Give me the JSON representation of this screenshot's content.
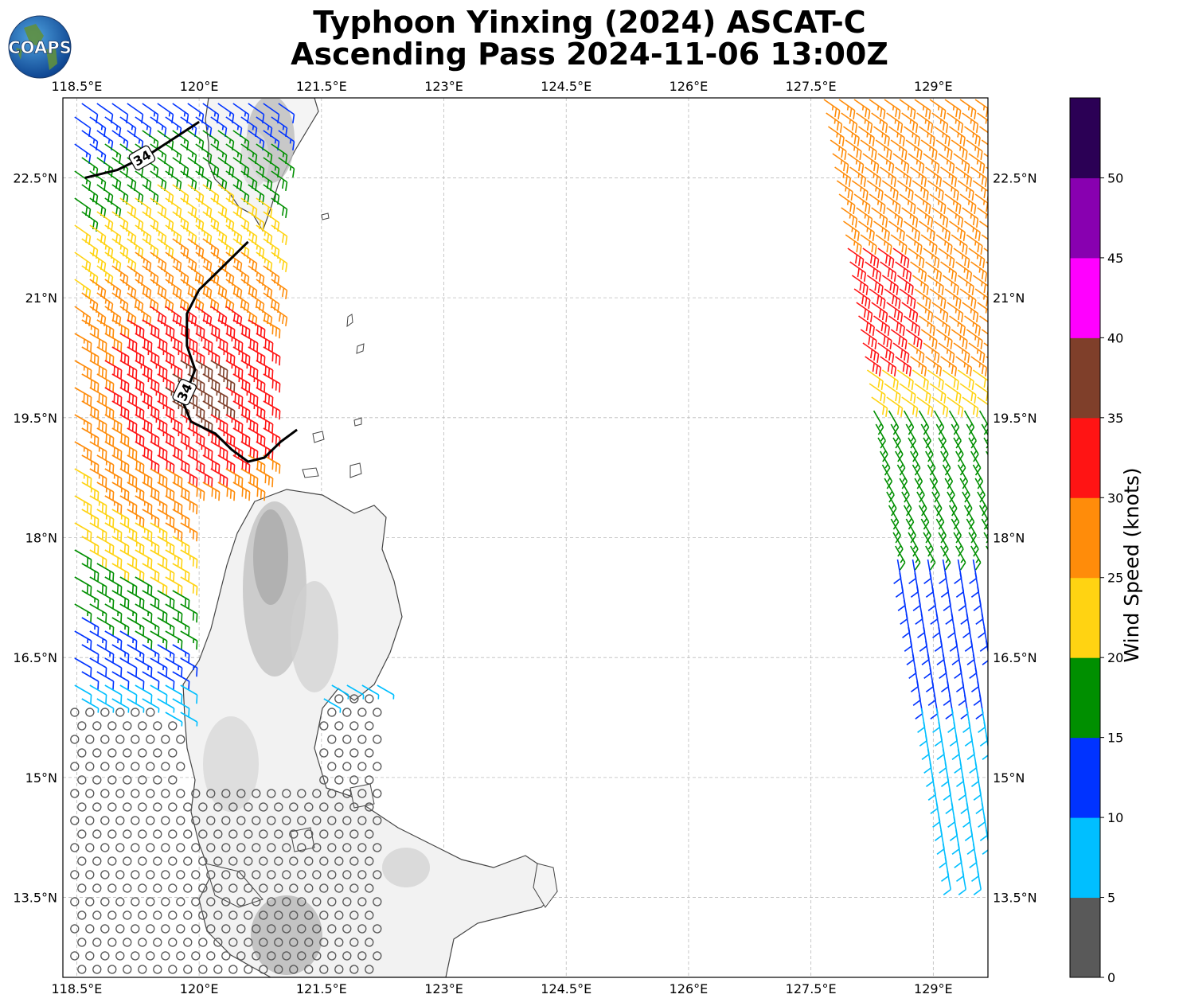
{
  "header": {
    "title_line1": "Typhoon Yinxing (2024) ASCAT-C",
    "title_line2": "Ascending Pass 2024-11-06 13:00Z",
    "logo_text": "COAPS"
  },
  "map": {
    "lon_range": [
      118.33,
      129.67
    ],
    "lat_range": [
      12.5,
      23.5
    ],
    "lon_ticks": [
      "118.5°E",
      "120°E",
      "121.5°E",
      "123°E",
      "124.5°E",
      "126°E",
      "127.5°E",
      "129°E"
    ],
    "lon_tick_values": [
      118.5,
      120,
      121.5,
      123,
      124.5,
      126,
      127.5,
      129
    ],
    "lat_ticks": [
      "22.5°N",
      "21°N",
      "19.5°N",
      "18°N",
      "16.5°N",
      "15°N",
      "13.5°N"
    ],
    "lat_tick_values": [
      22.5,
      21,
      19.5,
      18,
      16.5,
      15,
      13.5
    ],
    "contour_label": "34",
    "contours_34kt": [
      [
        [
          118.6,
          22.5
        ],
        [
          119.0,
          22.6
        ],
        [
          119.4,
          22.8
        ],
        [
          119.7,
          23.0
        ],
        [
          120.0,
          23.2
        ]
      ],
      [
        [
          120.6,
          21.7
        ],
        [
          120.3,
          21.4
        ],
        [
          120.0,
          21.1
        ],
        [
          119.85,
          20.8
        ],
        [
          119.85,
          20.4
        ],
        [
          119.95,
          20.1
        ],
        [
          119.8,
          19.7
        ],
        [
          119.9,
          19.45
        ],
        [
          120.2,
          19.3
        ],
        [
          120.4,
          19.1
        ],
        [
          120.6,
          18.95
        ],
        [
          120.8,
          19.0
        ],
        [
          121.0,
          19.2
        ],
        [
          121.2,
          19.35
        ]
      ]
    ],
    "gridlines": true,
    "colors": {
      "grid": "#bbbbbb",
      "coast": "#444444",
      "contour": "#000000",
      "terrain": "#cfcfcf"
    }
  },
  "colorbar": {
    "label": "Wind Speed (knots)",
    "ticks": [
      "0",
      "5",
      "10",
      "15",
      "20",
      "25",
      "30",
      "35",
      "40",
      "45",
      "50"
    ],
    "bins": [
      {
        "range": [
          0,
          5
        ],
        "color": "#595959"
      },
      {
        "range": [
          5,
          10
        ],
        "color": "#00bfff"
      },
      {
        "range": [
          10,
          15
        ],
        "color": "#0033ff"
      },
      {
        "range": [
          15,
          20
        ],
        "color": "#008f00"
      },
      {
        "range": [
          20,
          25
        ],
        "color": "#ffd312"
      },
      {
        "range": [
          25,
          30
        ],
        "color": "#ff8c0a"
      },
      {
        "range": [
          30,
          35
        ],
        "color": "#ff1414"
      },
      {
        "range": [
          35,
          40
        ],
        "color": "#7f3f2a"
      },
      {
        "range": [
          40,
          45
        ],
        "color": "#ff00ff"
      },
      {
        "range": [
          45,
          50
        ],
        "color": "#8800b0"
      },
      {
        "range": [
          50,
          55
        ],
        "color": "#2b0055"
      }
    ]
  }
}
